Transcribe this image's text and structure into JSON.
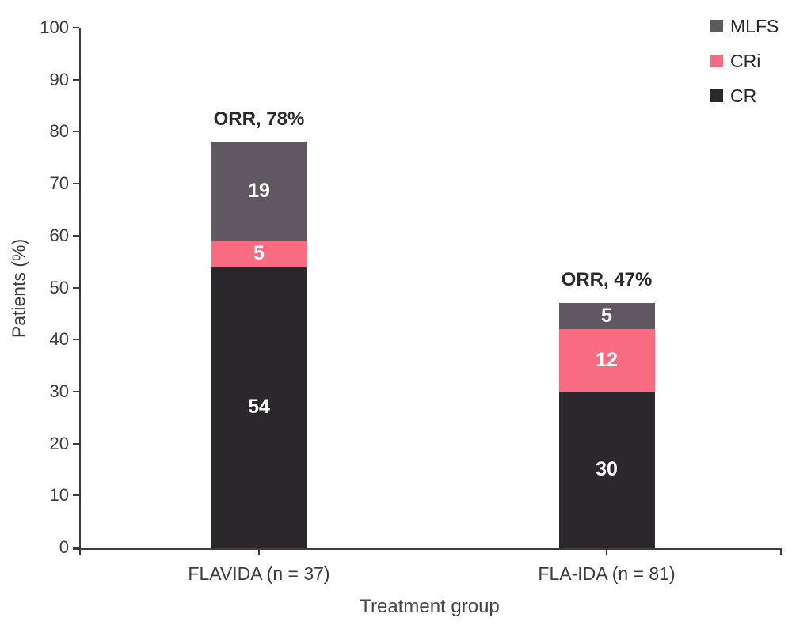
{
  "chart_data": {
    "type": "bar",
    "stacked": true,
    "xlabel": "Treatment group",
    "ylabel": "Patients (%)",
    "ylim": [
      0,
      100
    ],
    "ytick_step": 10,
    "grid": false,
    "categories": [
      "FLAVIDA (n = 37)",
      "FLA-IDA (n = 81)"
    ],
    "group_totals_labels": [
      "ORR, 78%",
      "ORR, 47%"
    ],
    "series": [
      {
        "name": "CR",
        "color": "#2b282b",
        "values": [
          54,
          30
        ]
      },
      {
        "name": "CRi",
        "color": "#f86b80",
        "values": [
          5,
          12
        ]
      },
      {
        "name": "MLFS",
        "color": "#5f5860",
        "values": [
          19,
          5
        ]
      }
    ],
    "legend": {
      "position": "top-right",
      "order": [
        "MLFS",
        "CRi",
        "CR"
      ]
    },
    "bar_value_label_color": "#ffffff",
    "axis_color": "#3d3b3c"
  }
}
